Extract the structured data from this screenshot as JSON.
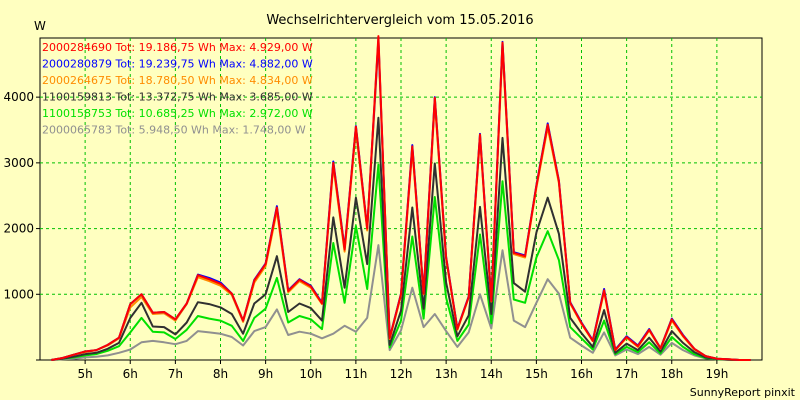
{
  "chart_data": {
    "type": "line",
    "title": "Wechselrichtervergleich vom 15.05.2016",
    "ylabel": "W",
    "xlabel": "",
    "footer": "SunnyReport pinxit",
    "grid": true,
    "legend_position": "top-left",
    "xlim": [
      4.0,
      20.0
    ],
    "ylim": [
      0,
      4900
    ],
    "x_ticks": [
      5,
      6,
      7,
      8,
      9,
      10,
      11,
      12,
      13,
      14,
      15,
      16,
      17,
      18,
      19
    ],
    "x_tick_labels": [
      "5h",
      "6h",
      "7h",
      "8h",
      "9h",
      "10h",
      "11h",
      "12h",
      "13h",
      "14h",
      "15h",
      "16h",
      "17h",
      "18h",
      "19h"
    ],
    "y_ticks": [
      0,
      1000,
      2000,
      3000,
      4000
    ],
    "y_tick_labels": [
      "",
      "1000",
      "2000",
      "3000",
      "4000"
    ],
    "x": [
      4.25,
      4.5,
      4.75,
      5.0,
      5.25,
      5.5,
      5.75,
      6.0,
      6.25,
      6.5,
      6.75,
      7.0,
      7.25,
      7.5,
      7.75,
      8.0,
      8.25,
      8.5,
      8.75,
      9.0,
      9.25,
      9.5,
      9.75,
      10.0,
      10.25,
      10.5,
      10.75,
      11.0,
      11.25,
      11.5,
      11.75,
      12.0,
      12.25,
      12.5,
      12.75,
      13.0,
      13.25,
      13.5,
      13.75,
      14.0,
      14.25,
      14.5,
      14.75,
      15.0,
      15.25,
      15.5,
      15.75,
      16.0,
      16.25,
      16.5,
      16.75,
      17.0,
      17.25,
      17.5,
      17.75,
      18.0,
      18.25,
      18.5,
      18.75,
      19.0,
      19.25,
      19.5,
      19.75
    ],
    "series": [
      {
        "name": "2000284690",
        "legend": "2000284690 Tot: 19.186,75 Wh Max: 4.929,00 W",
        "color": "#ff0000",
        "values": [
          0,
          30,
          80,
          130,
          150,
          230,
          340,
          850,
          1000,
          720,
          730,
          620,
          860,
          1290,
          1230,
          1160,
          1010,
          600,
          1210,
          1460,
          2320,
          1050,
          1220,
          1120,
          860,
          3000,
          1680,
          3550,
          2000,
          4929,
          330,
          1000,
          3250,
          1010,
          3990,
          1560,
          470,
          960,
          3430,
          900,
          4830,
          1630,
          1580,
          2650,
          3580,
          2720,
          870,
          560,
          290,
          1060,
          150,
          350,
          210,
          460,
          180,
          620,
          370,
          170,
          60,
          20,
          10,
          0,
          0
        ]
      },
      {
        "name": "2000280879",
        "legend": "2000280879 Tot: 19.239,75 Wh Max: 4.882,00 W",
        "color": "#0000ff",
        "values": [
          0,
          30,
          80,
          130,
          150,
          230,
          340,
          850,
          1000,
          720,
          730,
          620,
          860,
          1300,
          1250,
          1180,
          1010,
          600,
          1220,
          1470,
          2340,
          1060,
          1230,
          1130,
          870,
          3020,
          1700,
          3560,
          2010,
          4882,
          340,
          1010,
          3270,
          1020,
          4000,
          1570,
          480,
          970,
          3440,
          910,
          4840,
          1640,
          1590,
          2660,
          3600,
          2730,
          880,
          570,
          300,
          1080,
          160,
          360,
          220,
          470,
          180,
          630,
          380,
          170,
          60,
          20,
          10,
          0,
          0
        ]
      },
      {
        "name": "2000264675",
        "legend": "2000264675 Tot: 18.780,50 Wh Max: 4.834,00 W",
        "color": "#ff8c00",
        "values": [
          0,
          30,
          80,
          120,
          150,
          220,
          330,
          800,
          960,
          700,
          710,
          600,
          850,
          1260,
          1200,
          1130,
          990,
          580,
          1180,
          1430,
          2270,
          1030,
          1200,
          1100,
          850,
          2950,
          1650,
          3500,
          1970,
          4834,
          320,
          980,
          3200,
          1000,
          3920,
          1540,
          460,
          950,
          3380,
          890,
          4750,
          1610,
          1560,
          2620,
          3540,
          2690,
          860,
          550,
          290,
          1040,
          150,
          340,
          200,
          450,
          170,
          600,
          360,
          160,
          60,
          20,
          10,
          0,
          0
        ]
      },
      {
        "name": "1100159813",
        "legend": "1100159813 Tot: 13.372,75 Wh Max: 3.685,00 W",
        "color": "#303030",
        "values": [
          0,
          20,
          50,
          90,
          110,
          170,
          260,
          640,
          870,
          510,
          500,
          390,
          570,
          880,
          850,
          800,
          700,
          400,
          860,
          1000,
          1580,
          730,
          860,
          790,
          600,
          2170,
          1100,
          2470,
          1460,
          3685,
          230,
          750,
          2320,
          780,
          2990,
          1180,
          360,
          680,
          2330,
          700,
          3380,
          1170,
          1040,
          1940,
          2470,
          1920,
          640,
          410,
          200,
          760,
          110,
          250,
          150,
          340,
          130,
          440,
          260,
          120,
          40,
          15,
          5,
          0,
          0
        ]
      },
      {
        "name": "1100158753",
        "legend": "1100158753 Tot: 10.685,25 Wh Max: 2.972,00 W",
        "color": "#00e000",
        "values": [
          0,
          20,
          40,
          70,
          90,
          140,
          210,
          420,
          640,
          430,
          420,
          320,
          460,
          670,
          630,
          600,
          520,
          290,
          640,
          780,
          1250,
          570,
          670,
          620,
          470,
          1780,
          870,
          2040,
          1080,
          2972,
          190,
          600,
          1880,
          630,
          2480,
          950,
          290,
          540,
          1910,
          560,
          2720,
          920,
          870,
          1560,
          1960,
          1520,
          500,
          330,
          160,
          600,
          90,
          200,
          120,
          270,
          100,
          350,
          200,
          90,
          30,
          10,
          5,
          0,
          0
        ]
      },
      {
        "name": "2000065783",
        "legend": "2000065783 Tot: 5.948,50 Wh Max: 1.748,00 W",
        "color": "#909090",
        "values": [
          0,
          10,
          20,
          40,
          50,
          70,
          110,
          160,
          270,
          290,
          270,
          240,
          290,
          440,
          420,
          400,
          350,
          220,
          440,
          500,
          770,
          380,
          430,
          400,
          330,
          400,
          520,
          430,
          640,
          1748,
          150,
          450,
          1100,
          500,
          700,
          440,
          200,
          420,
          1000,
          480,
          1670,
          600,
          500,
          870,
          1230,
          1010,
          340,
          220,
          110,
          420,
          70,
          160,
          90,
          200,
          80,
          260,
          150,
          70,
          25,
          10,
          5,
          0,
          0
        ]
      }
    ]
  }
}
